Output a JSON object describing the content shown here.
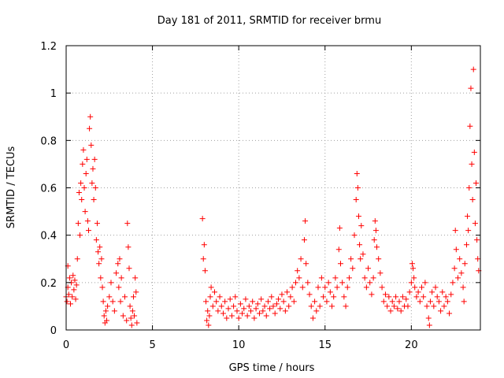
{
  "chart_data": {
    "type": "scatter",
    "title": "Day 181 of 2011, SRMTID for receiver brmu",
    "xlabel": "GPS time / hours",
    "ylabel": "SRMTID / TECUs",
    "xlim": [
      0,
      24
    ],
    "ylim": [
      0,
      1.2
    ],
    "xticks": [
      0,
      5,
      10,
      15,
      20
    ],
    "xtick_labels": [
      "0",
      "5",
      "10",
      "15",
      "20"
    ],
    "yticks": [
      0,
      0.2,
      0.4,
      0.6,
      0.8,
      1,
      1.2
    ],
    "ytick_labels": [
      "0",
      "0.2",
      "0.4",
      "0.6",
      "0.8",
      "1",
      "1.2"
    ],
    "grid": true,
    "marker": "plus",
    "color": "#ff0000",
    "series": [
      {
        "name": "SRMTID",
        "points": [
          [
            0.0,
            0.14
          ],
          [
            0.05,
            0.12
          ],
          [
            0.1,
            0.27
          ],
          [
            0.1,
            0.18
          ],
          [
            0.15,
            0.15
          ],
          [
            0.2,
            0.22
          ],
          [
            0.25,
            0.11
          ],
          [
            0.3,
            0.2
          ],
          [
            0.35,
            0.14
          ],
          [
            0.4,
            0.23
          ],
          [
            0.45,
            0.17
          ],
          [
            0.5,
            0.21
          ],
          [
            0.55,
            0.13
          ],
          [
            0.6,
            0.19
          ],
          [
            0.65,
            0.3
          ],
          [
            0.7,
            0.45
          ],
          [
            0.75,
            0.58
          ],
          [
            0.8,
            0.4
          ],
          [
            0.85,
            0.62
          ],
          [
            0.9,
            0.55
          ],
          [
            0.95,
            0.7
          ],
          [
            1.0,
            0.76
          ],
          [
            1.05,
            0.6
          ],
          [
            1.1,
            0.5
          ],
          [
            1.15,
            0.66
          ],
          [
            1.2,
            0.72
          ],
          [
            1.25,
            0.46
          ],
          [
            1.3,
            0.42
          ],
          [
            1.35,
            0.85
          ],
          [
            1.4,
            0.9
          ],
          [
            1.45,
            0.78
          ],
          [
            1.5,
            0.62
          ],
          [
            1.55,
            0.68
          ],
          [
            1.6,
            0.55
          ],
          [
            1.65,
            0.72
          ],
          [
            1.7,
            0.6
          ],
          [
            1.75,
            0.38
          ],
          [
            1.8,
            0.45
          ],
          [
            1.85,
            0.33
          ],
          [
            1.9,
            0.28
          ],
          [
            1.95,
            0.35
          ],
          [
            2.0,
            0.22
          ],
          [
            2.05,
            0.3
          ],
          [
            2.1,
            0.18
          ],
          [
            2.15,
            0.12
          ],
          [
            2.2,
            0.06
          ],
          [
            2.25,
            0.03
          ],
          [
            2.3,
            0.08
          ],
          [
            2.35,
            0.04
          ],
          [
            2.4,
            0.1
          ],
          [
            2.5,
            0.14
          ],
          [
            2.6,
            0.2
          ],
          [
            2.7,
            0.12
          ],
          [
            2.8,
            0.08
          ],
          [
            2.9,
            0.24
          ],
          [
            3.0,
            0.28
          ],
          [
            3.05,
            0.18
          ],
          [
            3.1,
            0.3
          ],
          [
            3.15,
            0.12
          ],
          [
            3.2,
            0.22
          ],
          [
            3.3,
            0.06
          ],
          [
            3.4,
            0.14
          ],
          [
            3.5,
            0.04
          ],
          [
            3.55,
            0.45
          ],
          [
            3.6,
            0.35
          ],
          [
            3.65,
            0.26
          ],
          [
            3.7,
            0.1
          ],
          [
            3.75,
            0.05
          ],
          [
            3.8,
            0.02
          ],
          [
            3.85,
            0.08
          ],
          [
            3.9,
            0.14
          ],
          [
            3.95,
            0.06
          ],
          [
            4.0,
            0.22
          ],
          [
            4.05,
            0.16
          ],
          [
            4.1,
            0.03
          ],
          [
            7.9,
            0.47
          ],
          [
            7.95,
            0.3
          ],
          [
            8.0,
            0.36
          ],
          [
            8.05,
            0.25
          ],
          [
            8.1,
            0.12
          ],
          [
            8.15,
            0.04
          ],
          [
            8.2,
            0.08
          ],
          [
            8.25,
            0.02
          ],
          [
            8.3,
            0.06
          ],
          [
            8.35,
            0.14
          ],
          [
            8.4,
            0.18
          ],
          [
            8.5,
            0.1
          ],
          [
            8.6,
            0.16
          ],
          [
            8.7,
            0.12
          ],
          [
            8.8,
            0.08
          ],
          [
            8.9,
            0.14
          ],
          [
            9.0,
            0.1
          ],
          [
            9.1,
            0.07
          ],
          [
            9.2,
            0.12
          ],
          [
            9.3,
            0.05
          ],
          [
            9.4,
            0.09
          ],
          [
            9.5,
            0.13
          ],
          [
            9.6,
            0.06
          ],
          [
            9.7,
            0.1
          ],
          [
            9.8,
            0.14
          ],
          [
            9.9,
            0.08
          ],
          [
            10.0,
            0.05
          ],
          [
            10.1,
            0.11
          ],
          [
            10.2,
            0.07
          ],
          [
            10.3,
            0.09
          ],
          [
            10.4,
            0.13
          ],
          [
            10.5,
            0.06
          ],
          [
            10.6,
            0.1
          ],
          [
            10.7,
            0.08
          ],
          [
            10.8,
            0.12
          ],
          [
            10.9,
            0.05
          ],
          [
            11.0,
            0.09
          ],
          [
            11.1,
            0.11
          ],
          [
            11.2,
            0.07
          ],
          [
            11.3,
            0.13
          ],
          [
            11.4,
            0.08
          ],
          [
            11.5,
            0.1
          ],
          [
            11.6,
            0.06
          ],
          [
            11.7,
            0.12
          ],
          [
            11.8,
            0.09
          ],
          [
            11.9,
            0.14
          ],
          [
            12.0,
            0.1
          ],
          [
            12.1,
            0.07
          ],
          [
            12.2,
            0.11
          ],
          [
            12.3,
            0.13
          ],
          [
            12.4,
            0.09
          ],
          [
            12.5,
            0.15
          ],
          [
            12.6,
            0.12
          ],
          [
            12.7,
            0.08
          ],
          [
            12.8,
            0.16
          ],
          [
            12.9,
            0.1
          ],
          [
            13.0,
            0.14
          ],
          [
            13.1,
            0.18
          ],
          [
            13.2,
            0.12
          ],
          [
            13.3,
            0.2
          ],
          [
            13.4,
            0.25
          ],
          [
            13.5,
            0.22
          ],
          [
            13.6,
            0.3
          ],
          [
            13.7,
            0.18
          ],
          [
            13.8,
            0.38
          ],
          [
            13.85,
            0.46
          ],
          [
            13.9,
            0.28
          ],
          [
            14.0,
            0.2
          ],
          [
            14.1,
            0.15
          ],
          [
            14.2,
            0.1
          ],
          [
            14.3,
            0.05
          ],
          [
            14.4,
            0.12
          ],
          [
            14.5,
            0.08
          ],
          [
            14.6,
            0.18
          ],
          [
            14.7,
            0.1
          ],
          [
            14.8,
            0.22
          ],
          [
            14.9,
            0.14
          ],
          [
            15.0,
            0.18
          ],
          [
            15.1,
            0.12
          ],
          [
            15.2,
            0.2
          ],
          [
            15.3,
            0.16
          ],
          [
            15.4,
            0.1
          ],
          [
            15.5,
            0.14
          ],
          [
            15.6,
            0.22
          ],
          [
            15.7,
            0.18
          ],
          [
            15.8,
            0.34
          ],
          [
            15.85,
            0.43
          ],
          [
            15.9,
            0.28
          ],
          [
            16.0,
            0.2
          ],
          [
            16.1,
            0.14
          ],
          [
            16.2,
            0.1
          ],
          [
            16.3,
            0.18
          ],
          [
            16.4,
            0.22
          ],
          [
            16.5,
            0.3
          ],
          [
            16.6,
            0.26
          ],
          [
            16.7,
            0.4
          ],
          [
            16.8,
            0.55
          ],
          [
            16.85,
            0.66
          ],
          [
            16.9,
            0.6
          ],
          [
            16.95,
            0.48
          ],
          [
            17.0,
            0.36
          ],
          [
            17.05,
            0.3
          ],
          [
            17.1,
            0.44
          ],
          [
            17.2,
            0.32
          ],
          [
            17.3,
            0.22
          ],
          [
            17.4,
            0.18
          ],
          [
            17.5,
            0.26
          ],
          [
            17.6,
            0.2
          ],
          [
            17.7,
            0.15
          ],
          [
            17.8,
            0.22
          ],
          [
            17.85,
            0.38
          ],
          [
            17.9,
            0.46
          ],
          [
            17.95,
            0.42
          ],
          [
            18.0,
            0.35
          ],
          [
            18.1,
            0.3
          ],
          [
            18.2,
            0.24
          ],
          [
            18.3,
            0.18
          ],
          [
            18.4,
            0.12
          ],
          [
            18.5,
            0.15
          ],
          [
            18.6,
            0.1
          ],
          [
            18.7,
            0.14
          ],
          [
            18.8,
            0.08
          ],
          [
            18.9,
            0.12
          ],
          [
            19.0,
            0.1
          ],
          [
            19.1,
            0.14
          ],
          [
            19.2,
            0.09
          ],
          [
            19.3,
            0.12
          ],
          [
            19.4,
            0.08
          ],
          [
            19.5,
            0.14
          ],
          [
            19.6,
            0.1
          ],
          [
            19.7,
            0.13
          ],
          [
            19.8,
            0.1
          ],
          [
            19.9,
            0.16
          ],
          [
            20.0,
            0.2
          ],
          [
            20.05,
            0.28
          ],
          [
            20.1,
            0.26
          ],
          [
            20.15,
            0.22
          ],
          [
            20.2,
            0.18
          ],
          [
            20.3,
            0.14
          ],
          [
            20.4,
            0.16
          ],
          [
            20.5,
            0.12
          ],
          [
            20.6,
            0.18
          ],
          [
            20.7,
            0.14
          ],
          [
            20.8,
            0.2
          ],
          [
            20.9,
            0.1
          ],
          [
            21.0,
            0.05
          ],
          [
            21.05,
            0.02
          ],
          [
            21.1,
            0.12
          ],
          [
            21.2,
            0.16
          ],
          [
            21.3,
            0.1
          ],
          [
            21.4,
            0.18
          ],
          [
            21.5,
            0.14
          ],
          [
            21.6,
            0.12
          ],
          [
            21.7,
            0.08
          ],
          [
            21.8,
            0.16
          ],
          [
            21.9,
            0.1
          ],
          [
            22.0,
            0.14
          ],
          [
            22.1,
            0.12
          ],
          [
            22.2,
            0.07
          ],
          [
            22.3,
            0.15
          ],
          [
            22.4,
            0.2
          ],
          [
            22.5,
            0.26
          ],
          [
            22.55,
            0.42
          ],
          [
            22.6,
            0.34
          ],
          [
            22.7,
            0.22
          ],
          [
            22.8,
            0.3
          ],
          [
            22.9,
            0.24
          ],
          [
            23.0,
            0.18
          ],
          [
            23.05,
            0.12
          ],
          [
            23.1,
            0.28
          ],
          [
            23.2,
            0.36
          ],
          [
            23.25,
            0.48
          ],
          [
            23.3,
            0.42
          ],
          [
            23.35,
            0.6
          ],
          [
            23.4,
            0.86
          ],
          [
            23.45,
            1.02
          ],
          [
            23.5,
            0.7
          ],
          [
            23.55,
            0.55
          ],
          [
            23.6,
            1.1
          ],
          [
            23.65,
            0.75
          ],
          [
            23.7,
            0.45
          ],
          [
            23.75,
            0.62
          ],
          [
            23.8,
            0.38
          ],
          [
            23.85,
            0.3
          ],
          [
            23.9,
            0.25
          ]
        ]
      }
    ]
  }
}
